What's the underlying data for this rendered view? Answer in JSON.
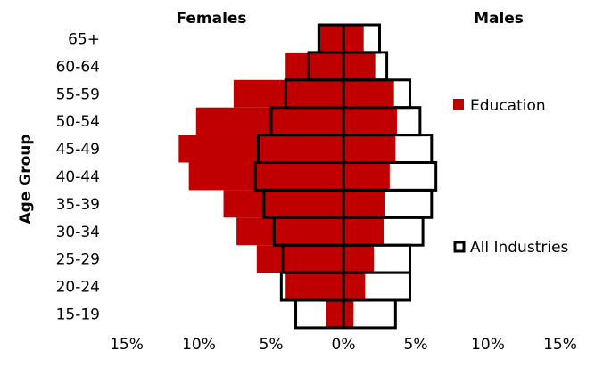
{
  "chart_data": {
    "type": "bar",
    "orientation": "horizontal",
    "subtype": "population-pyramid",
    "ylabel": "Age Group",
    "side_labels": {
      "left": "Females",
      "right": "Males"
    },
    "categories": [
      "65+",
      "60-64",
      "55-59",
      "50-54",
      "45-49",
      "40-44",
      "35-39",
      "30-34",
      "25-29",
      "20-24",
      "15-19"
    ],
    "x_ticks": [
      "15%",
      "10%",
      "5%",
      "0%",
      "5%",
      "10%",
      "15%"
    ],
    "xlim": [
      -15,
      15
    ],
    "series": [
      {
        "name": "Education",
        "style": "filled",
        "color": "#c00000",
        "females": [
          1.8,
          4.0,
          7.6,
          10.2,
          11.4,
          10.7,
          8.3,
          7.4,
          6.0,
          4.0,
          1.2
        ],
        "males": [
          1.4,
          2.2,
          3.5,
          3.7,
          3.6,
          3.2,
          2.9,
          2.8,
          2.1,
          1.5,
          0.7
        ]
      },
      {
        "name": "All Industries",
        "style": "outline",
        "color": "#000000",
        "females": [
          1.7,
          2.4,
          4.0,
          5.0,
          5.9,
          6.1,
          5.5,
          4.8,
          4.2,
          4.3,
          3.3
        ],
        "males": [
          2.5,
          3.0,
          4.6,
          5.3,
          6.1,
          6.4,
          6.1,
          5.5,
          4.6,
          4.6,
          3.6
        ]
      }
    ]
  }
}
